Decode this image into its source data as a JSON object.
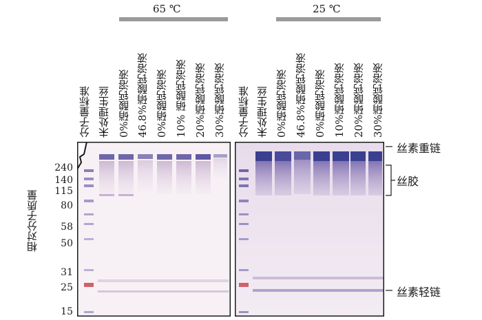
{
  "groups": {
    "left": {
      "temperature": "65 ℃"
    },
    "right": {
      "temperature": "25 ℃"
    }
  },
  "lanes": {
    "left": [
      "分子量标准",
      "未处理生丝",
      "0%硝酸钙溶液",
      "46.8%硝酸钙溶液",
      "0%硝酸钙溶液",
      "10% 硝酸钙溶液",
      "20%硝酸钙溶液",
      "30%硝酸钙溶液"
    ],
    "right": [
      "分子量标准",
      "未处理生丝",
      "0%硝酸钙溶液",
      "46.8%硝酸钙溶液",
      "0%硝酸钙溶液",
      "10%硝酸钙溶液",
      "20%硝酸钙溶液",
      "30%硝酸钙溶液"
    ]
  },
  "axis": {
    "title": "相对分子质量",
    "markers": [
      "240",
      "140",
      "115",
      "80",
      "58",
      "50",
      "31",
      "25",
      "15"
    ]
  },
  "annotations": {
    "heavy_chain": "丝素重链",
    "sericin": "丝胶",
    "light_chain": "丝素轻链"
  },
  "colors": {
    "gel_bg": "#f6eff5",
    "band_dark": "#3a3f8f",
    "band_mid": "#6a5fa5",
    "marker_red": "#d0606a",
    "border": "#1a1a1a"
  }
}
